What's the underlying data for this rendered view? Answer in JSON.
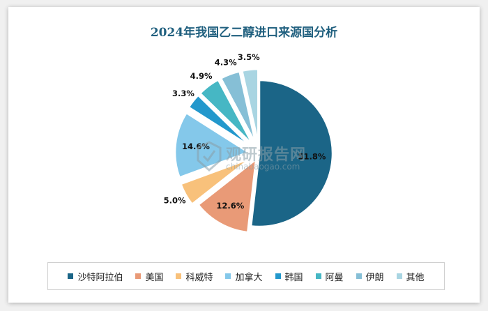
{
  "chart_data": {
    "type": "pie",
    "title": "2024年我国乙二醇进口来源国分析",
    "slices": [
      {
        "name": "沙特阿拉伯",
        "value": 51.8,
        "label": "51.8%",
        "color": "#1b6587"
      },
      {
        "name": "美国",
        "value": 12.6,
        "label": "12.6%",
        "color": "#e99a77"
      },
      {
        "name": "科威特",
        "value": 5.0,
        "label": "5.0%",
        "color": "#f8c17b"
      },
      {
        "name": "加拿大",
        "value": 14.6,
        "label": "14.6%",
        "color": "#84c8ea"
      },
      {
        "name": "韩国",
        "value": 3.3,
        "label": "3.3%",
        "color": "#2398cc"
      },
      {
        "name": "阿曼",
        "value": 4.9,
        "label": "4.9%",
        "color": "#46b7c4"
      },
      {
        "name": "伊朗",
        "value": 4.3,
        "label": "4.3%",
        "color": "#86bfd6"
      },
      {
        "name": "其他",
        "value": 3.5,
        "label": "3.5%",
        "color": "#a9d5e2"
      }
    ],
    "legend_position": "bottom"
  },
  "watermark": {
    "text": "观研报告网",
    "url": "chinabaogao.com"
  }
}
